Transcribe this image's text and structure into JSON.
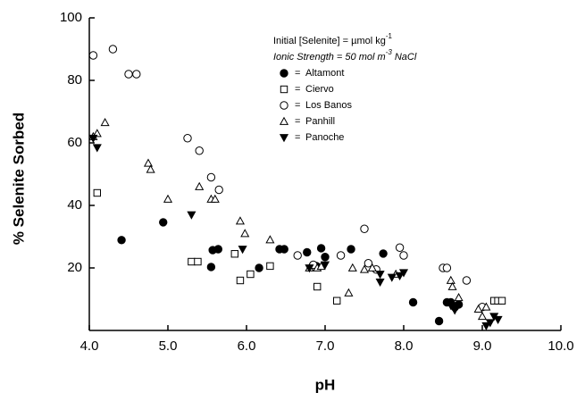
{
  "chart_data": {
    "type": "scatter",
    "x_label": "pH",
    "y_label": "% Selenite Sorbed",
    "annotations": [
      [
        "Initial [Selenite] = µmol kg",
        "-1"
      ],
      [
        "Ionic Strength = 50 mol m",
        "-3",
        " NaCl"
      ]
    ],
    "legend_separator": "=",
    "xlim": [
      4,
      10
    ],
    "xticks": [
      {
        "value": 4,
        "label": "4.0"
      },
      {
        "value": 5,
        "label": "5.0"
      },
      {
        "value": 6,
        "label": "6.0"
      },
      {
        "value": 7,
        "label": "7.0"
      },
      {
        "value": 8,
        "label": "8.0"
      },
      {
        "value": 9,
        "label": "9.0"
      },
      {
        "value": 10,
        "label": "10.0"
      }
    ],
    "ylim": [
      0,
      100
    ],
    "yticks": [
      20,
      40,
      60,
      80,
      100
    ],
    "series": [
      {
        "name": "Altamont",
        "marker": "circle-filled",
        "color": "#000000",
        "x": [
          4.41,
          4.94,
          5.55,
          5.57,
          5.64,
          6.16,
          6.42,
          6.48,
          6.77,
          6.89,
          6.95,
          7.0,
          7.33,
          7.74,
          8.12,
          8.45,
          8.55,
          8.6,
          8.65,
          8.7
        ],
        "values": [
          28.9,
          34.6,
          20.3,
          25.7,
          26,
          20,
          26,
          26,
          25,
          20.6,
          26.3,
          23.5,
          26,
          24.6,
          9,
          3,
          9,
          9,
          7.4,
          8.3
        ]
      },
      {
        "name": "Ciervo",
        "marker": "square-open",
        "color": "#000000",
        "x": [
          4.1,
          5.3,
          5.38,
          5.85,
          5.92,
          6.05,
          6.3,
          6.9,
          7.15,
          9.15,
          9.2,
          9.25
        ],
        "values": [
          44,
          22,
          22,
          24.5,
          16,
          18,
          20.6,
          14,
          9.5,
          9.5,
          9.5,
          9.5
        ]
      },
      {
        "name": "Los Banos",
        "marker": "circle-open",
        "color": "#000000",
        "x": [
          4.05,
          4.3,
          4.5,
          4.6,
          5.25,
          5.4,
          5.55,
          5.65,
          6.65,
          6.85,
          7.2,
          7.5,
          7.55,
          7.65,
          7.95,
          8.0,
          8.5,
          8.55,
          8.8,
          9.0
        ],
        "values": [
          88,
          90,
          82,
          82,
          61.5,
          57.5,
          49,
          45,
          24,
          21,
          24,
          32.5,
          21.5,
          19.5,
          26.5,
          24,
          20,
          20,
          16,
          7.5
        ]
      },
      {
        "name": "Panhill",
        "marker": "triangle-up-open",
        "color": "#000000",
        "x": [
          4.05,
          4.1,
          4.2,
          4.75,
          4.78,
          5.0,
          5.4,
          5.55,
          5.6,
          5.92,
          5.98,
          6.3,
          6.8,
          6.9,
          6.95,
          7.3,
          7.35,
          7.5,
          7.6,
          7.9,
          8.6,
          8.62,
          8.7,
          8.95,
          9.0,
          9.05
        ],
        "values": [
          62,
          63,
          66.5,
          53.5,
          51.5,
          42,
          46,
          42,
          42,
          35,
          31,
          29,
          20,
          20,
          20.5,
          12,
          20,
          19.5,
          20,
          18,
          16,
          14,
          10.5,
          6.8,
          4.5,
          7.5
        ]
      },
      {
        "name": "Panoche",
        "marker": "triangle-down-filled",
        "color": "#000000",
        "x": [
          4.05,
          4.1,
          5.3,
          5.95,
          6.8,
          7.0,
          7.7,
          7.7,
          7.85,
          7.95,
          8.0,
          8.6,
          8.65,
          9.05,
          9.1,
          9.15,
          9.2
        ],
        "values": [
          61.5,
          58.5,
          37,
          26,
          20,
          21,
          15.5,
          18,
          17,
          17.5,
          18.5,
          8,
          6.5,
          1.5,
          2.5,
          4.5,
          3.5
        ]
      }
    ]
  }
}
